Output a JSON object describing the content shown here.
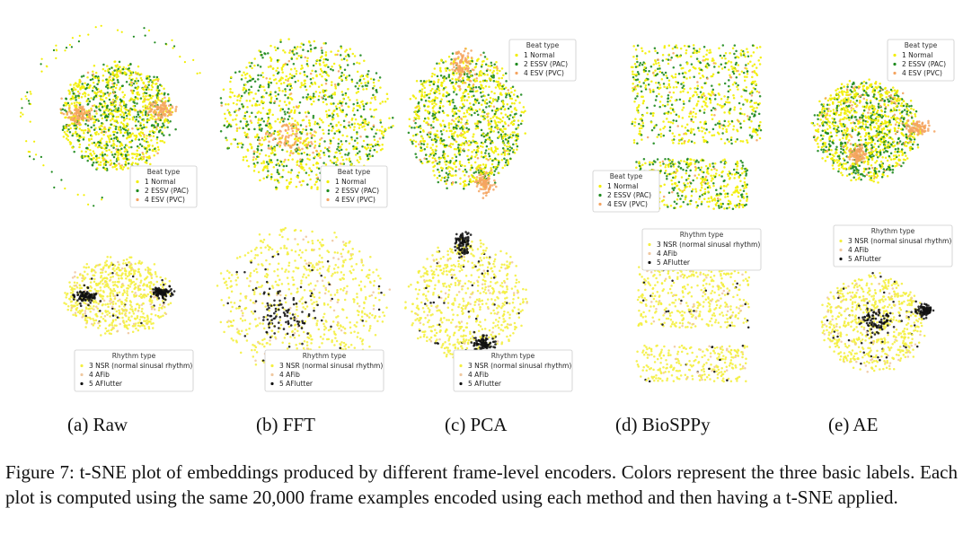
{
  "figure": {
    "caption": "Figure 7: t-SNE plot of embeddings produced by different frame-level encoders. Colors represent the three basic labels. Each plot is computed using the same 20,000 frame examples encoded using each method and then having a t-SNE applied."
  },
  "colors": {
    "normal": "#f2ee00",
    "essv": "#1e8a1e",
    "esv": "#f4a460",
    "nsr": "#f4ef40",
    "afib": "#f0c8a0",
    "aflutter": "#111111"
  },
  "chart_data": [
    {
      "type": "scatter",
      "subcaption": "(a) Raw",
      "panels": [
        {
          "row": "beat",
          "legend_title": "Beat type",
          "legend_position": "bottom-right",
          "series": [
            {
              "name": "1 Normal",
              "color": "#f2ee00"
            },
            {
              "name": "2 ESSV (PAC)",
              "color": "#1e8a1e"
            },
            {
              "name": "4 ESV (PVC)",
              "color": "#f4a460"
            }
          ]
        },
        {
          "row": "rhythm",
          "legend_title": "Rhythm type",
          "legend_position": "bottom-center",
          "series": [
            {
              "name": "3 NSR (normal sinusal rhythm)",
              "color": "#f4ef40"
            },
            {
              "name": "4 AFib",
              "color": "#f0c8a0"
            },
            {
              "name": "5 AFlutter",
              "color": "#111111"
            }
          ]
        }
      ]
    },
    {
      "type": "scatter",
      "subcaption": "(b) FFT",
      "panels": [
        {
          "row": "beat",
          "legend_title": "Beat type",
          "legend_position": "bottom-right",
          "series": [
            {
              "name": "1 Normal",
              "color": "#f2ee00"
            },
            {
              "name": "2 ESSV (PAC)",
              "color": "#1e8a1e"
            },
            {
              "name": "4 ESV (PVC)",
              "color": "#f4a460"
            }
          ]
        },
        {
          "row": "rhythm",
          "legend_title": "Rhythm type",
          "legend_position": "bottom-right",
          "series": [
            {
              "name": "3 NSR (normal sinusal rhythm)",
              "color": "#f4ef40"
            },
            {
              "name": "4 AFib",
              "color": "#f0c8a0"
            },
            {
              "name": "5 AFlutter",
              "color": "#111111"
            }
          ]
        }
      ]
    },
    {
      "type": "scatter",
      "subcaption": "(c) PCA",
      "panels": [
        {
          "row": "beat",
          "legend_title": "Beat type",
          "legend_position": "top-right",
          "series": [
            {
              "name": "1 Normal",
              "color": "#f2ee00"
            },
            {
              "name": "2 ESSV (PAC)",
              "color": "#1e8a1e"
            },
            {
              "name": "4 ESV (PVC)",
              "color": "#f4a460"
            }
          ]
        },
        {
          "row": "rhythm",
          "legend_title": "Rhythm type",
          "legend_position": "bottom-right",
          "series": [
            {
              "name": "3 NSR (normal sinusal rhythm)",
              "color": "#f4ef40"
            },
            {
              "name": "4 AFib",
              "color": "#f0c8a0"
            },
            {
              "name": "5 AFlutter",
              "color": "#111111"
            }
          ]
        }
      ]
    },
    {
      "type": "scatter",
      "subcaption": "(d) BioSPPy",
      "panels": [
        {
          "row": "beat",
          "legend_title": "Beat type",
          "legend_position": "bottom-left",
          "series": [
            {
              "name": "1 Normal",
              "color": "#f2ee00"
            },
            {
              "name": "2 ESSV (PAC)",
              "color": "#1e8a1e"
            },
            {
              "name": "4 ESV (PVC)",
              "color": "#f4a460"
            }
          ]
        },
        {
          "row": "rhythm",
          "legend_title": "Rhythm type",
          "legend_position": "top-right",
          "series": [
            {
              "name": "3 NSR (normal sinusal rhythm)",
              "color": "#f4ef40"
            },
            {
              "name": "4 AFib",
              "color": "#f0c8a0"
            },
            {
              "name": "5 AFlutter",
              "color": "#111111"
            }
          ]
        }
      ]
    },
    {
      "type": "scatter",
      "subcaption": "(e) AE",
      "panels": [
        {
          "row": "beat",
          "legend_title": "Beat type",
          "legend_position": "top-right",
          "series": [
            {
              "name": "1 Normal",
              "color": "#f2ee00"
            },
            {
              "name": "2 ESSV (PAC)",
              "color": "#1e8a1e"
            },
            {
              "name": "4 ESV (PVC)",
              "color": "#f4a460"
            }
          ]
        },
        {
          "row": "rhythm",
          "legend_title": "Rhythm type",
          "legend_position": "top-right",
          "series": [
            {
              "name": "3 NSR (normal sinusal rhythm)",
              "color": "#f4ef40"
            },
            {
              "name": "4 AFib",
              "color": "#f0c8a0"
            },
            {
              "name": "5 AFlutter",
              "color": "#111111"
            }
          ]
        }
      ]
    }
  ]
}
